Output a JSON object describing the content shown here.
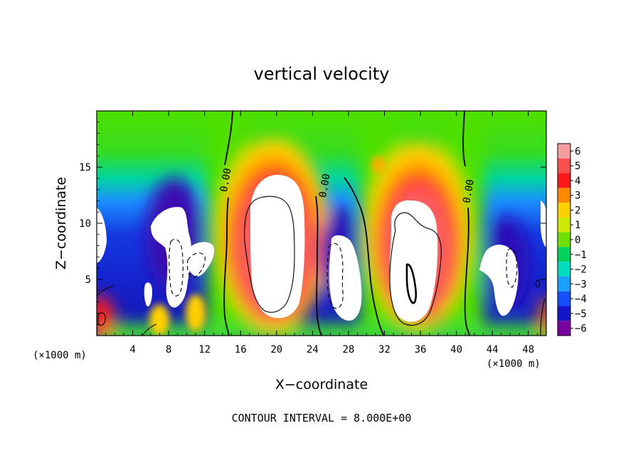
{
  "chart_data": {
    "type": "heatmap",
    "title": "vertical velocity",
    "xlabel": "X−coordinate",
    "ylabel": "Z−coordinate",
    "x_unit": "(×1000 m)",
    "x_unit_right": "(×1000 m)",
    "xlim": [
      0,
      50
    ],
    "ylim": [
      0,
      20
    ],
    "x_ticks": [
      4,
      8,
      12,
      16,
      20,
      24,
      28,
      32,
      36,
      40,
      44,
      48
    ],
    "y_ticks": [
      5,
      10,
      15
    ],
    "colorbar": {
      "levels": [
        6,
        5,
        4,
        3,
        2,
        1,
        0,
        -1,
        -2,
        -3,
        -4,
        -5,
        -6
      ],
      "labels": [
        "6",
        "5",
        "4",
        "3",
        "2",
        "1",
        "0",
        "−1",
        "−2",
        "−3",
        "−4",
        "−5",
        "−6"
      ],
      "colors": [
        "#f4a0a0",
        "#fa5050",
        "#ff1a1a",
        "#ff8a00",
        "#ffd000",
        "#cfe800",
        "#6ee000",
        "#00d260",
        "#00dcc0",
        "#1aa0ff",
        "#1450ff",
        "#1414c8",
        "#7800a0"
      ]
    },
    "contour_labels": [
      {
        "text": "0.00",
        "x": 14.7,
        "z": 13.8
      },
      {
        "text": "0.00",
        "x": 25.7,
        "z": 13.3
      },
      {
        "text": "0.00",
        "x": 41.7,
        "z": 12.8
      }
    ],
    "note": "CONTOUR INTERVAL = 8.000E+00"
  }
}
